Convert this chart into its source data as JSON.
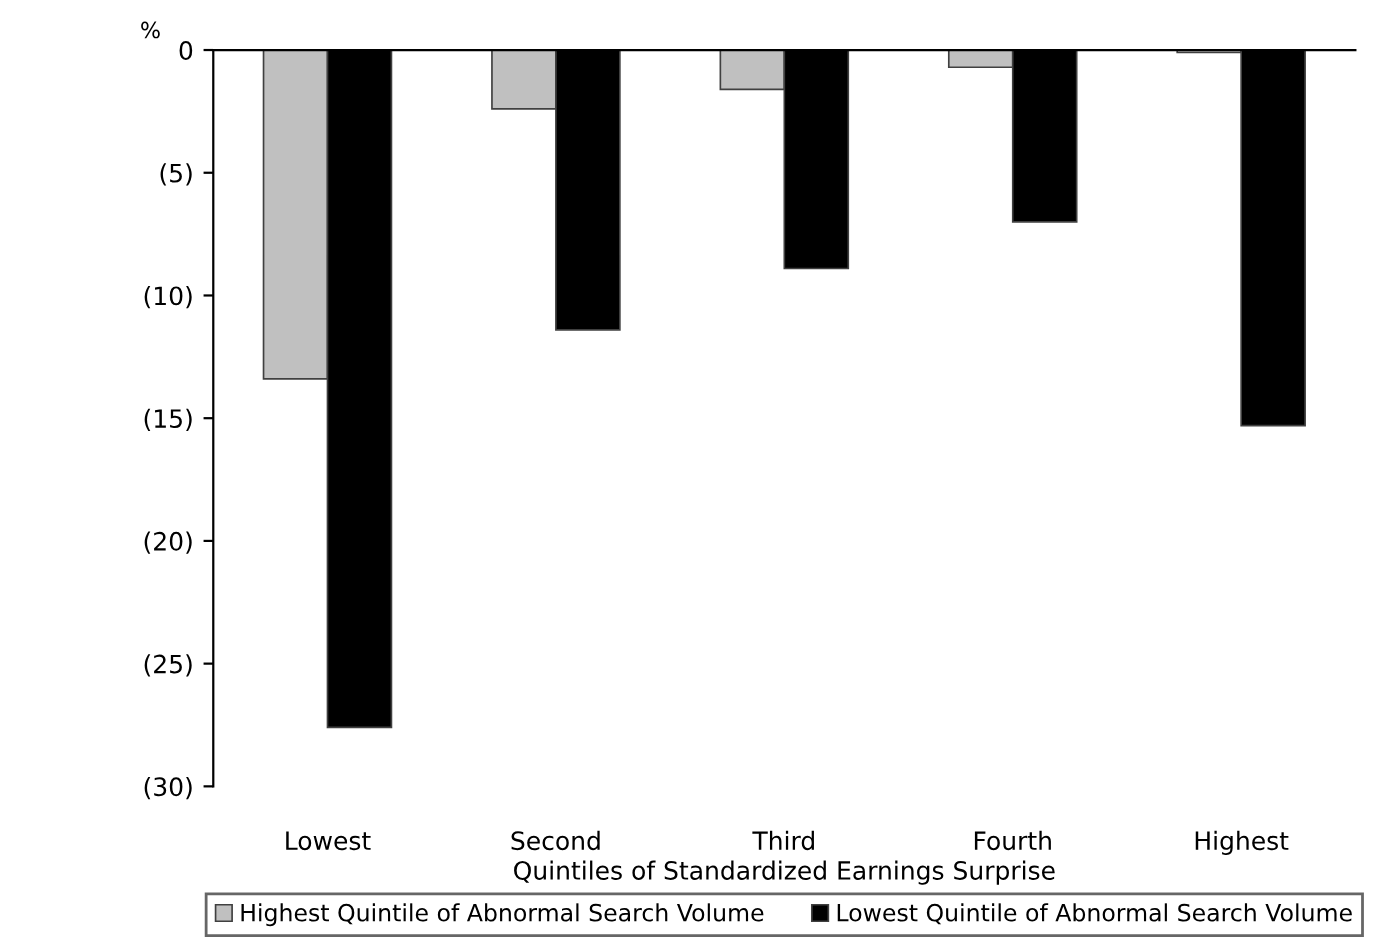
{
  "chart_data": {
    "type": "bar",
    "ylabel": "%",
    "xlabel": "Quintiles of Standardized Earnings Surprise",
    "categories": [
      "Lowest",
      "Second",
      "Third",
      "Fourth",
      "Highest"
    ],
    "series": [
      {
        "name": "Highest Quintile of Abnormal Search Volume",
        "color": "#c0c0c0",
        "values": [
          -13.4,
          -2.4,
          -1.6,
          -0.7,
          -0.1
        ]
      },
      {
        "name": "Lowest Quintile of Abnormal Search Volume",
        "color": "#000000",
        "values": [
          -27.6,
          -11.4,
          -8.9,
          -7.0,
          -15.3
        ]
      }
    ],
    "ylim": [
      -30,
      0
    ],
    "yticks": [
      0,
      {
        "value": -5,
        "label": "(5)"
      },
      {
        "value": -10,
        "label": "(10)"
      },
      {
        "value": -15,
        "label": "(15)"
      },
      {
        "value": -20,
        "label": "(20)"
      },
      {
        "value": -25,
        "label": "(25)"
      },
      {
        "value": -30,
        "label": "(30)"
      }
    ],
    "grid": false,
    "legend": "bottom"
  }
}
